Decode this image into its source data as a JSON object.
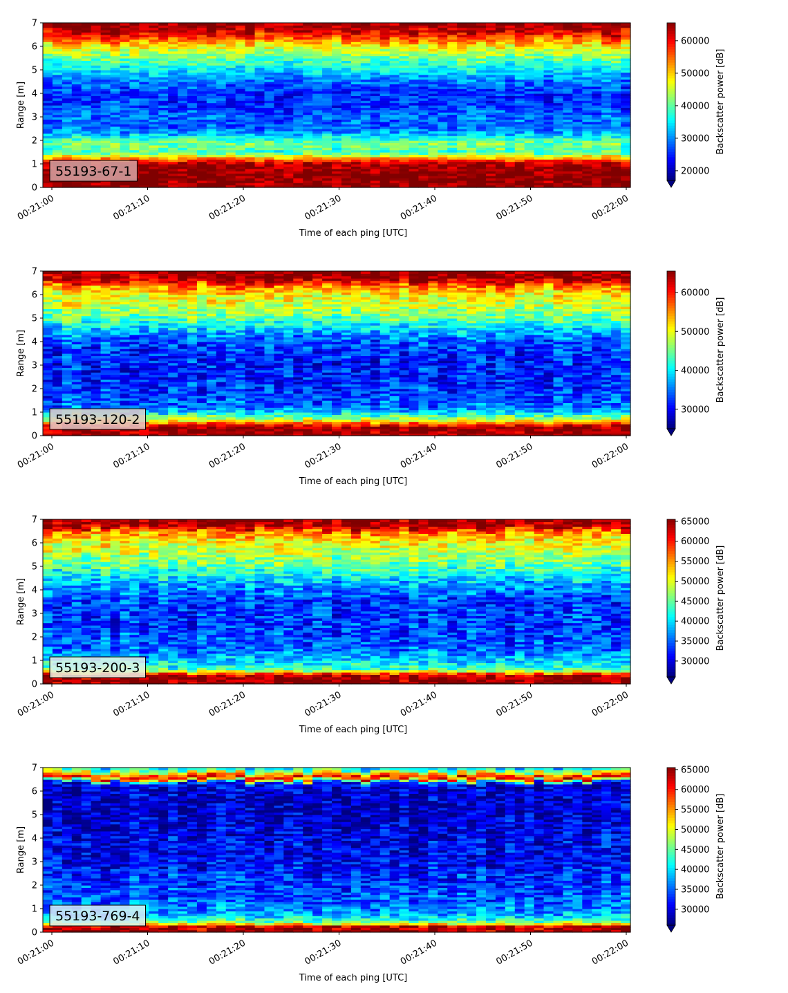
{
  "figure": {
    "x_axis": {
      "label": "Time of each ping [UTC]",
      "start": "00:21:00",
      "end": "00:22:00",
      "ticks": [
        "00:21:00",
        "00:21:10",
        "00:21:20",
        "00:21:30",
        "00:21:40",
        "00:21:50",
        "00:22:00"
      ]
    },
    "colormap": "jet",
    "colorbar_label": "Backscatter power [dB]"
  },
  "chart_data": [
    {
      "type": "heatmap",
      "panel_label": "55193-67-1",
      "ylabel": "Range [m]",
      "xlabel": "Time of each ping [UTC]",
      "ylim": [
        0,
        7
      ],
      "yticks": [
        0,
        1,
        2,
        3,
        4,
        5,
        6,
        7
      ],
      "xlim": [
        "00:21:00",
        "00:22:00"
      ],
      "colorbar": {
        "label": "Backscatter power [dB]",
        "vmin": 17000,
        "vmax": 65500,
        "ticks": [
          20000,
          30000,
          40000,
          50000,
          60000
        ],
        "extend": "min"
      },
      "label_box_color": "#d4a5a5",
      "range_profile": [
        {
          "range_m": 0.2,
          "value": 65000
        },
        {
          "range_m": 0.6,
          "value": 65000
        },
        {
          "range_m": 1.0,
          "value": 64000
        },
        {
          "range_m": 1.2,
          "value": 55000
        },
        {
          "range_m": 1.5,
          "value": 38000
        },
        {
          "range_m": 1.9,
          "value": 41000
        },
        {
          "range_m": 2.3,
          "value": 31000
        },
        {
          "range_m": 2.6,
          "value": 27000
        },
        {
          "range_m": 3.0,
          "value": 28000
        },
        {
          "range_m": 3.5,
          "value": 25000
        },
        {
          "range_m": 4.0,
          "value": 25000
        },
        {
          "range_m": 4.5,
          "value": 28000
        },
        {
          "range_m": 5.0,
          "value": 34000
        },
        {
          "range_m": 5.5,
          "value": 40000
        },
        {
          "range_m": 5.9,
          "value": 46000
        },
        {
          "range_m": 6.2,
          "value": 52000
        },
        {
          "range_m": 6.6,
          "value": 61000
        },
        {
          "range_m": 7.0,
          "value": 65000
        }
      ]
    },
    {
      "type": "heatmap",
      "panel_label": "55193-120-2",
      "ylabel": "Range [m]",
      "xlabel": "Time of each ping [UTC]",
      "ylim": [
        0,
        7
      ],
      "yticks": [
        0,
        1,
        2,
        3,
        4,
        5,
        6,
        7
      ],
      "xlim": [
        "00:21:00",
        "00:22:00"
      ],
      "colorbar": {
        "label": "Backscatter power [dB]",
        "vmin": 25000,
        "vmax": 65500,
        "ticks": [
          30000,
          40000,
          50000,
          60000
        ],
        "extend": "min"
      },
      "label_box_color": "#e3c9c9",
      "range_profile": [
        {
          "range_m": 0.1,
          "value": 65000
        },
        {
          "range_m": 0.4,
          "value": 64000
        },
        {
          "range_m": 0.7,
          "value": 48000
        },
        {
          "range_m": 0.9,
          "value": 42000
        },
        {
          "range_m": 1.2,
          "value": 34000
        },
        {
          "range_m": 2.0,
          "value": 32000
        },
        {
          "range_m": 3.0,
          "value": 31000
        },
        {
          "range_m": 4.0,
          "value": 33000
        },
        {
          "range_m": 4.5,
          "value": 38000
        },
        {
          "range_m": 5.0,
          "value": 44000
        },
        {
          "range_m": 5.5,
          "value": 48000
        },
        {
          "range_m": 6.0,
          "value": 50000
        },
        {
          "range_m": 6.4,
          "value": 56000
        },
        {
          "range_m": 6.7,
          "value": 64000
        },
        {
          "range_m": 7.0,
          "value": 65000
        }
      ]
    },
    {
      "type": "heatmap",
      "panel_label": "55193-200-3",
      "ylabel": "Range [m]",
      "xlabel": "Time of each ping [UTC]",
      "ylim": [
        0,
        7
      ],
      "yticks": [
        0,
        1,
        2,
        3,
        4,
        5,
        6,
        7
      ],
      "xlim": [
        "00:21:00",
        "00:22:00"
      ],
      "colorbar": {
        "label": "Backscatter power [dB]",
        "vmin": 26000,
        "vmax": 65500,
        "ticks": [
          30000,
          35000,
          40000,
          45000,
          50000,
          55000,
          60000,
          65000
        ],
        "extend": "min"
      },
      "label_box_color": "#e6f2e6",
      "range_profile": [
        {
          "range_m": 0.1,
          "value": 65000
        },
        {
          "range_m": 0.4,
          "value": 62000
        },
        {
          "range_m": 0.6,
          "value": 44000
        },
        {
          "range_m": 0.9,
          "value": 40000
        },
        {
          "range_m": 1.5,
          "value": 35000
        },
        {
          "range_m": 2.5,
          "value": 33000
        },
        {
          "range_m": 3.5,
          "value": 33000
        },
        {
          "range_m": 4.2,
          "value": 37000
        },
        {
          "range_m": 5.0,
          "value": 44000
        },
        {
          "range_m": 5.6,
          "value": 48000
        },
        {
          "range_m": 6.1,
          "value": 51000
        },
        {
          "range_m": 6.5,
          "value": 56000
        },
        {
          "range_m": 6.7,
          "value": 64000
        },
        {
          "range_m": 7.0,
          "value": 65000
        }
      ]
    },
    {
      "type": "heatmap",
      "panel_label": "55193-769-4",
      "ylabel": "Range [m]",
      "xlabel": "Time of each ping [UTC]",
      "ylim": [
        0,
        7
      ],
      "yticks": [
        0,
        1,
        2,
        3,
        4,
        5,
        6,
        7
      ],
      "xlim": [
        "00:21:00",
        "00:22:00"
      ],
      "colorbar": {
        "label": "Backscatter power [dB]",
        "vmin": 26000,
        "vmax": 65500,
        "ticks": [
          30000,
          35000,
          40000,
          45000,
          50000,
          55000,
          60000,
          65000
        ],
        "extend": "min"
      },
      "label_box_color": "#d9ecf5",
      "range_profile": [
        {
          "range_m": 0.1,
          "value": 64000
        },
        {
          "range_m": 0.25,
          "value": 62000
        },
        {
          "range_m": 0.4,
          "value": 46000
        },
        {
          "range_m": 0.7,
          "value": 38000
        },
        {
          "range_m": 1.2,
          "value": 35000
        },
        {
          "range_m": 2.0,
          "value": 33000
        },
        {
          "range_m": 3.0,
          "value": 31000
        },
        {
          "range_m": 4.0,
          "value": 30000
        },
        {
          "range_m": 5.0,
          "value": 29000
        },
        {
          "range_m": 6.0,
          "value": 29000
        },
        {
          "range_m": 6.35,
          "value": 31000
        },
        {
          "range_m": 6.55,
          "value": 61000
        },
        {
          "range_m": 6.7,
          "value": 56000
        },
        {
          "range_m": 6.85,
          "value": 45000
        },
        {
          "range_m": 7.0,
          "value": 40000
        }
      ]
    }
  ]
}
